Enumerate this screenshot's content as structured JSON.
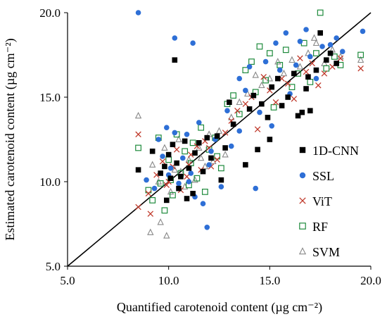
{
  "chart_data": {
    "type": "scatter",
    "xlabel": "Quantified carotenoid content (µg cm⁻²)",
    "ylabel": "Estimated carotenoid content (µg cm⁻²)",
    "xlim": [
      5.0,
      20.0
    ],
    "ylim": [
      5.0,
      20.0
    ],
    "xticks": [
      "5.0",
      "10.0",
      "15.0",
      "20.0"
    ],
    "yticks": [
      "5.0",
      "10.0",
      "15.0",
      "20.0"
    ],
    "reference_line": "1:1",
    "grid": false,
    "legend_position": "right",
    "series": [
      {
        "name": "1D-CNN",
        "marker": "square",
        "color": "#000000",
        "points": [
          [
            8.5,
            10.7
          ],
          [
            9.2,
            11.8
          ],
          [
            9.6,
            10.5
          ],
          [
            9.8,
            10.9
          ],
          [
            10.0,
            11.6
          ],
          [
            10.1,
            10.2
          ],
          [
            10.2,
            12.2
          ],
          [
            10.3,
            17.2
          ],
          [
            10.4,
            11.1
          ],
          [
            10.6,
            10.3
          ],
          [
            10.8,
            12.4
          ],
          [
            11.0,
            10.8
          ],
          [
            11.3,
            11.7
          ],
          [
            11.5,
            12.3
          ],
          [
            11.7,
            10.6
          ],
          [
            11.9,
            12.6
          ],
          [
            12.1,
            11.4
          ],
          [
            12.4,
            12.7
          ],
          [
            12.6,
            10.1
          ],
          [
            12.8,
            12.0
          ],
          [
            13.2,
            13.4
          ],
          [
            13.8,
            11.0
          ],
          [
            14.0,
            14.3
          ],
          [
            14.2,
            15.1
          ],
          [
            14.4,
            11.9
          ],
          [
            14.6,
            14.6
          ],
          [
            14.9,
            13.8
          ],
          [
            15.1,
            15.6
          ],
          [
            15.4,
            16.1
          ],
          [
            15.6,
            14.5
          ],
          [
            15.9,
            15.0
          ],
          [
            16.2,
            16.4
          ],
          [
            16.4,
            13.9
          ],
          [
            16.6,
            14.1
          ],
          [
            16.8,
            15.5
          ],
          [
            17.0,
            14.2
          ],
          [
            17.3,
            16.6
          ],
          [
            17.5,
            18.8
          ],
          [
            17.8,
            17.2
          ],
          [
            18.0,
            17.6
          ],
          [
            18.3,
            17.0
          ],
          [
            16.9,
            16.2
          ],
          [
            15.0,
            12.5
          ],
          [
            13.0,
            14.7
          ],
          [
            11.2,
            9.3
          ],
          [
            10.5,
            9.6
          ],
          [
            9.9,
            8.9
          ],
          [
            10.9,
            9.0
          ]
        ]
      },
      {
        "name": "SSL",
        "marker": "circle",
        "color": "#2e6fd6",
        "points": [
          [
            8.5,
            20.0
          ],
          [
            10.3,
            18.5
          ],
          [
            11.2,
            18.2
          ],
          [
            8.9,
            10.1
          ],
          [
            9.3,
            9.6
          ],
          [
            9.5,
            12.5
          ],
          [
            9.7,
            11.5
          ],
          [
            9.9,
            13.2
          ],
          [
            10.1,
            10.8
          ],
          [
            10.3,
            12.9
          ],
          [
            10.5,
            9.9
          ],
          [
            10.7,
            11.4
          ],
          [
            10.9,
            12.8
          ],
          [
            11.1,
            10.5
          ],
          [
            11.3,
            9.1
          ],
          [
            11.5,
            13.5
          ],
          [
            11.7,
            8.7
          ],
          [
            11.9,
            7.3
          ],
          [
            12.1,
            11.8
          ],
          [
            12.3,
            12.5
          ],
          [
            12.6,
            9.7
          ],
          [
            12.9,
            14.2
          ],
          [
            13.1,
            12.1
          ],
          [
            13.5,
            16.1
          ],
          [
            13.8,
            15.4
          ],
          [
            14.0,
            16.8
          ],
          [
            14.3,
            9.6
          ],
          [
            14.5,
            14.1
          ],
          [
            14.8,
            17.1
          ],
          [
            15.1,
            13.3
          ],
          [
            15.3,
            18.2
          ],
          [
            15.5,
            16.6
          ],
          [
            15.8,
            18.8
          ],
          [
            16.0,
            15.2
          ],
          [
            16.3,
            16.9
          ],
          [
            16.5,
            18.3
          ],
          [
            16.8,
            19.0
          ],
          [
            17.0,
            17.4
          ],
          [
            17.3,
            16.1
          ],
          [
            17.6,
            18.0
          ],
          [
            18.0,
            18.1
          ],
          [
            18.3,
            18.5
          ],
          [
            18.6,
            17.7
          ],
          [
            19.6,
            18.9
          ],
          [
            11.0,
            10.0
          ],
          [
            10.0,
            10.4
          ],
          [
            12.0,
            11.0
          ],
          [
            13.5,
            13.0
          ]
        ]
      },
      {
        "name": "ViT",
        "marker": "x",
        "color": "#c0392b",
        "points": [
          [
            8.5,
            12.8
          ],
          [
            8.5,
            8.5
          ],
          [
            9.1,
            8.1
          ],
          [
            9.4,
            10.4
          ],
          [
            9.7,
            11.2
          ],
          [
            9.9,
            9.8
          ],
          [
            10.2,
            10.9
          ],
          [
            10.4,
            11.9
          ],
          [
            10.6,
            9.5
          ],
          [
            10.9,
            10.3
          ],
          [
            11.1,
            11.6
          ],
          [
            11.4,
            12.1
          ],
          [
            11.6,
            10.7
          ],
          [
            11.8,
            12.4
          ],
          [
            12.1,
            10.9
          ],
          [
            12.4,
            11.3
          ],
          [
            12.8,
            12.9
          ],
          [
            13.1,
            13.6
          ],
          [
            13.4,
            14.2
          ],
          [
            13.8,
            14.6
          ],
          [
            14.1,
            15.0
          ],
          [
            14.4,
            13.1
          ],
          [
            14.7,
            16.2
          ],
          [
            15.0,
            15.4
          ],
          [
            15.3,
            14.7
          ],
          [
            15.6,
            16.1
          ],
          [
            15.9,
            15.8
          ],
          [
            16.2,
            14.9
          ],
          [
            16.5,
            17.3
          ],
          [
            16.8,
            16.5
          ],
          [
            17.1,
            17.0
          ],
          [
            17.4,
            15.7
          ],
          [
            17.7,
            16.4
          ],
          [
            18.1,
            16.8
          ],
          [
            18.5,
            17.3
          ],
          [
            19.5,
            16.7
          ],
          [
            10.0,
            10.0
          ],
          [
            11.0,
            11.0
          ],
          [
            9.0,
            9.3
          ],
          [
            12.0,
            12.0
          ]
        ]
      },
      {
        "name": "RF",
        "marker": "open-square",
        "color": "#1e8a3c",
        "points": [
          [
            8.5,
            12.0
          ],
          [
            9.0,
            9.5
          ],
          [
            9.2,
            8.9
          ],
          [
            9.5,
            12.6
          ],
          [
            9.8,
            8.3
          ],
          [
            10.0,
            11.3
          ],
          [
            10.2,
            9.2
          ],
          [
            10.4,
            12.8
          ],
          [
            10.6,
            10.5
          ],
          [
            10.8,
            11.8
          ],
          [
            11.0,
            9.8
          ],
          [
            11.2,
            12.3
          ],
          [
            11.4,
            10.2
          ],
          [
            11.6,
            13.2
          ],
          [
            11.8,
            9.4
          ],
          [
            12.0,
            11.9
          ],
          [
            12.3,
            12.6
          ],
          [
            12.6,
            10.8
          ],
          [
            12.9,
            14.6
          ],
          [
            13.2,
            15.1
          ],
          [
            13.5,
            14.0
          ],
          [
            13.8,
            16.6
          ],
          [
            14.1,
            17.1
          ],
          [
            14.3,
            15.3
          ],
          [
            14.5,
            18.0
          ],
          [
            14.8,
            16.0
          ],
          [
            15.0,
            17.6
          ],
          [
            15.2,
            14.4
          ],
          [
            15.5,
            16.9
          ],
          [
            15.8,
            17.8
          ],
          [
            16.1,
            15.6
          ],
          [
            16.4,
            16.4
          ],
          [
            16.7,
            18.2
          ],
          [
            17.0,
            15.9
          ],
          [
            17.3,
            17.6
          ],
          [
            17.5,
            20.0
          ],
          [
            17.8,
            16.7
          ],
          [
            18.2,
            17.4
          ],
          [
            18.5,
            16.9
          ],
          [
            19.5,
            17.5
          ],
          [
            10.1,
            10.1
          ],
          [
            11.1,
            11.1
          ],
          [
            9.6,
            9.9
          ],
          [
            12.4,
            11.5
          ]
        ]
      },
      {
        "name": "SVM",
        "marker": "open-triangle",
        "color": "#888888",
        "points": [
          [
            8.5,
            13.9
          ],
          [
            9.1,
            7.0
          ],
          [
            9.6,
            7.6
          ],
          [
            9.9,
            6.8
          ],
          [
            9.2,
            11.0
          ],
          [
            9.5,
            10.0
          ],
          [
            9.8,
            12.0
          ],
          [
            10.1,
            9.4
          ],
          [
            10.3,
            10.7
          ],
          [
            10.5,
            12.5
          ],
          [
            10.8,
            9.7
          ],
          [
            11.0,
            11.3
          ],
          [
            11.3,
            10.1
          ],
          [
            11.5,
            12.0
          ],
          [
            11.8,
            10.9
          ],
          [
            12.0,
            12.8
          ],
          [
            12.2,
            11.2
          ],
          [
            12.5,
            13.0
          ],
          [
            12.8,
            11.6
          ],
          [
            13.1,
            13.8
          ],
          [
            13.5,
            14.7
          ],
          [
            13.9,
            15.2
          ],
          [
            14.3,
            16.3
          ],
          [
            14.6,
            15.7
          ],
          [
            15.0,
            16.1
          ],
          [
            15.4,
            17.1
          ],
          [
            15.7,
            16.4
          ],
          [
            16.1,
            17.2
          ],
          [
            16.5,
            16.8
          ],
          [
            16.9,
            17.6
          ],
          [
            17.2,
            18.5
          ],
          [
            17.3,
            18.2
          ],
          [
            17.7,
            17.0
          ],
          [
            18.1,
            17.8
          ],
          [
            18.5,
            17.4
          ],
          [
            19.5,
            17.2
          ],
          [
            10.6,
            10.6
          ],
          [
            11.6,
            11.4
          ]
        ]
      }
    ]
  }
}
